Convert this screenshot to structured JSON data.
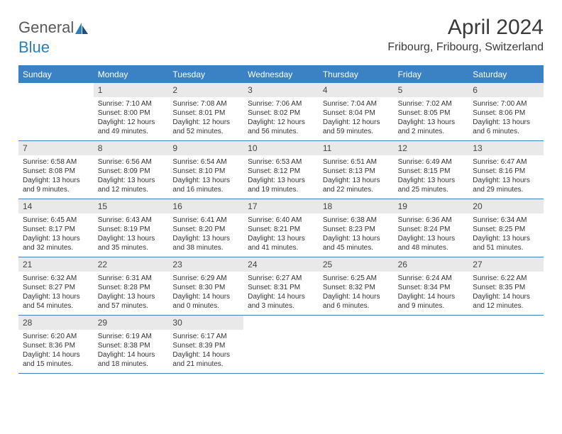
{
  "logo": {
    "prefix": "General",
    "suffix": "Blue"
  },
  "title": "April 2024",
  "location": "Fribourg, Fribourg, Switzerland",
  "colors": {
    "header_bg": "#3b82c4",
    "header_text": "#ffffff",
    "daynum_bg": "#e9e9e9",
    "border": "#3b82c4",
    "logo_gray": "#58595b",
    "logo_blue": "#2b7fbf",
    "text": "#333333"
  },
  "fonts": {
    "title_size": 30,
    "location_size": 16,
    "header_size": 12,
    "daynum_size": 12,
    "body_size": 10
  },
  "day_names": [
    "Sunday",
    "Monday",
    "Tuesday",
    "Wednesday",
    "Thursday",
    "Friday",
    "Saturday"
  ],
  "weeks": [
    [
      {
        "n": "",
        "sunrise": "",
        "sunset": "",
        "daylight1": "",
        "daylight2": ""
      },
      {
        "n": "1",
        "sunrise": "Sunrise: 7:10 AM",
        "sunset": "Sunset: 8:00 PM",
        "daylight1": "Daylight: 12 hours",
        "daylight2": "and 49 minutes."
      },
      {
        "n": "2",
        "sunrise": "Sunrise: 7:08 AM",
        "sunset": "Sunset: 8:01 PM",
        "daylight1": "Daylight: 12 hours",
        "daylight2": "and 52 minutes."
      },
      {
        "n": "3",
        "sunrise": "Sunrise: 7:06 AM",
        "sunset": "Sunset: 8:02 PM",
        "daylight1": "Daylight: 12 hours",
        "daylight2": "and 56 minutes."
      },
      {
        "n": "4",
        "sunrise": "Sunrise: 7:04 AM",
        "sunset": "Sunset: 8:04 PM",
        "daylight1": "Daylight: 12 hours",
        "daylight2": "and 59 minutes."
      },
      {
        "n": "5",
        "sunrise": "Sunrise: 7:02 AM",
        "sunset": "Sunset: 8:05 PM",
        "daylight1": "Daylight: 13 hours",
        "daylight2": "and 2 minutes."
      },
      {
        "n": "6",
        "sunrise": "Sunrise: 7:00 AM",
        "sunset": "Sunset: 8:06 PM",
        "daylight1": "Daylight: 13 hours",
        "daylight2": "and 6 minutes."
      }
    ],
    [
      {
        "n": "7",
        "sunrise": "Sunrise: 6:58 AM",
        "sunset": "Sunset: 8:08 PM",
        "daylight1": "Daylight: 13 hours",
        "daylight2": "and 9 minutes."
      },
      {
        "n": "8",
        "sunrise": "Sunrise: 6:56 AM",
        "sunset": "Sunset: 8:09 PM",
        "daylight1": "Daylight: 13 hours",
        "daylight2": "and 12 minutes."
      },
      {
        "n": "9",
        "sunrise": "Sunrise: 6:54 AM",
        "sunset": "Sunset: 8:10 PM",
        "daylight1": "Daylight: 13 hours",
        "daylight2": "and 16 minutes."
      },
      {
        "n": "10",
        "sunrise": "Sunrise: 6:53 AM",
        "sunset": "Sunset: 8:12 PM",
        "daylight1": "Daylight: 13 hours",
        "daylight2": "and 19 minutes."
      },
      {
        "n": "11",
        "sunrise": "Sunrise: 6:51 AM",
        "sunset": "Sunset: 8:13 PM",
        "daylight1": "Daylight: 13 hours",
        "daylight2": "and 22 minutes."
      },
      {
        "n": "12",
        "sunrise": "Sunrise: 6:49 AM",
        "sunset": "Sunset: 8:15 PM",
        "daylight1": "Daylight: 13 hours",
        "daylight2": "and 25 minutes."
      },
      {
        "n": "13",
        "sunrise": "Sunrise: 6:47 AM",
        "sunset": "Sunset: 8:16 PM",
        "daylight1": "Daylight: 13 hours",
        "daylight2": "and 29 minutes."
      }
    ],
    [
      {
        "n": "14",
        "sunrise": "Sunrise: 6:45 AM",
        "sunset": "Sunset: 8:17 PM",
        "daylight1": "Daylight: 13 hours",
        "daylight2": "and 32 minutes."
      },
      {
        "n": "15",
        "sunrise": "Sunrise: 6:43 AM",
        "sunset": "Sunset: 8:19 PM",
        "daylight1": "Daylight: 13 hours",
        "daylight2": "and 35 minutes."
      },
      {
        "n": "16",
        "sunrise": "Sunrise: 6:41 AM",
        "sunset": "Sunset: 8:20 PM",
        "daylight1": "Daylight: 13 hours",
        "daylight2": "and 38 minutes."
      },
      {
        "n": "17",
        "sunrise": "Sunrise: 6:40 AM",
        "sunset": "Sunset: 8:21 PM",
        "daylight1": "Daylight: 13 hours",
        "daylight2": "and 41 minutes."
      },
      {
        "n": "18",
        "sunrise": "Sunrise: 6:38 AM",
        "sunset": "Sunset: 8:23 PM",
        "daylight1": "Daylight: 13 hours",
        "daylight2": "and 45 minutes."
      },
      {
        "n": "19",
        "sunrise": "Sunrise: 6:36 AM",
        "sunset": "Sunset: 8:24 PM",
        "daylight1": "Daylight: 13 hours",
        "daylight2": "and 48 minutes."
      },
      {
        "n": "20",
        "sunrise": "Sunrise: 6:34 AM",
        "sunset": "Sunset: 8:25 PM",
        "daylight1": "Daylight: 13 hours",
        "daylight2": "and 51 minutes."
      }
    ],
    [
      {
        "n": "21",
        "sunrise": "Sunrise: 6:32 AM",
        "sunset": "Sunset: 8:27 PM",
        "daylight1": "Daylight: 13 hours",
        "daylight2": "and 54 minutes."
      },
      {
        "n": "22",
        "sunrise": "Sunrise: 6:31 AM",
        "sunset": "Sunset: 8:28 PM",
        "daylight1": "Daylight: 13 hours",
        "daylight2": "and 57 minutes."
      },
      {
        "n": "23",
        "sunrise": "Sunrise: 6:29 AM",
        "sunset": "Sunset: 8:30 PM",
        "daylight1": "Daylight: 14 hours",
        "daylight2": "and 0 minutes."
      },
      {
        "n": "24",
        "sunrise": "Sunrise: 6:27 AM",
        "sunset": "Sunset: 8:31 PM",
        "daylight1": "Daylight: 14 hours",
        "daylight2": "and 3 minutes."
      },
      {
        "n": "25",
        "sunrise": "Sunrise: 6:25 AM",
        "sunset": "Sunset: 8:32 PM",
        "daylight1": "Daylight: 14 hours",
        "daylight2": "and 6 minutes."
      },
      {
        "n": "26",
        "sunrise": "Sunrise: 6:24 AM",
        "sunset": "Sunset: 8:34 PM",
        "daylight1": "Daylight: 14 hours",
        "daylight2": "and 9 minutes."
      },
      {
        "n": "27",
        "sunrise": "Sunrise: 6:22 AM",
        "sunset": "Sunset: 8:35 PM",
        "daylight1": "Daylight: 14 hours",
        "daylight2": "and 12 minutes."
      }
    ],
    [
      {
        "n": "28",
        "sunrise": "Sunrise: 6:20 AM",
        "sunset": "Sunset: 8:36 PM",
        "daylight1": "Daylight: 14 hours",
        "daylight2": "and 15 minutes."
      },
      {
        "n": "29",
        "sunrise": "Sunrise: 6:19 AM",
        "sunset": "Sunset: 8:38 PM",
        "daylight1": "Daylight: 14 hours",
        "daylight2": "and 18 minutes."
      },
      {
        "n": "30",
        "sunrise": "Sunrise: 6:17 AM",
        "sunset": "Sunset: 8:39 PM",
        "daylight1": "Daylight: 14 hours",
        "daylight2": "and 21 minutes."
      },
      {
        "n": "",
        "sunrise": "",
        "sunset": "",
        "daylight1": "",
        "daylight2": ""
      },
      {
        "n": "",
        "sunrise": "",
        "sunset": "",
        "daylight1": "",
        "daylight2": ""
      },
      {
        "n": "",
        "sunrise": "",
        "sunset": "",
        "daylight1": "",
        "daylight2": ""
      },
      {
        "n": "",
        "sunrise": "",
        "sunset": "",
        "daylight1": "",
        "daylight2": ""
      }
    ]
  ]
}
